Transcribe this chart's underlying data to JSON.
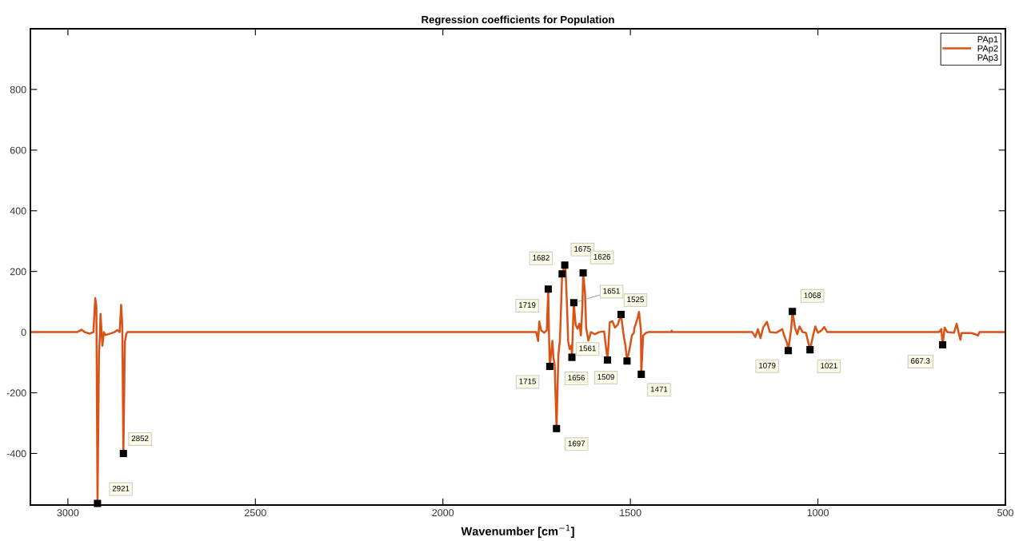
{
  "chart_data": {
    "type": "line",
    "title": "Regression coefficients for Population",
    "xlabel": "Wavenumber [cm$^{−1}$]",
    "xlim": [
      3100,
      500
    ],
    "xticks": [
      3000,
      2500,
      2000,
      1500,
      1000,
      500
    ],
    "ylim": [
      -570,
      1000
    ],
    "yticks": [
      -400,
      -200,
      0,
      200,
      400,
      600,
      800
    ],
    "grid": false,
    "legend": "top right",
    "marker": "none",
    "line_style": "solid",
    "series": [
      {
        "name": "PAp1"
      },
      {
        "name": "PAp2",
        "color": "#d95319",
        "x": [
          3095,
          2975,
          2964,
          2955,
          2942,
          2932,
          2927,
          2924,
          2921,
          2917,
          2915,
          2913,
          2908,
          2904,
          2900,
          2876,
          2868,
          2862,
          2858,
          2855,
          2852,
          2848,
          2844,
          2841,
          1815,
          1751,
          1746,
          1743,
          1738,
          1730,
          1723,
          1719,
          1717,
          1715,
          1708,
          1705,
          1702,
          1697,
          1692,
          1688,
          1686,
          1682,
          1675,
          1673,
          1669,
          1666,
          1662,
          1657,
          1656,
          1651,
          1646,
          1641,
          1636,
          1632,
          1628,
          1626,
          1621,
          1618,
          1612,
          1605,
          1595,
          1584,
          1570,
          1561,
          1555,
          1548,
          1541,
          1534,
          1525,
          1518,
          1513,
          1509,
          1502,
          1496,
          1491,
          1489,
          1482,
          1477,
          1472,
          1471,
          1466,
          1459,
          1452,
          1431,
          1392,
          1390,
          1388,
          1175,
          1167,
          1160,
          1153,
          1146,
          1136,
          1128,
          1111,
          1095,
          1090,
          1082,
          1079,
          1071,
          1068,
          1061,
          1055,
          1049,
          1041,
          1032,
          1025,
          1021,
          1012,
          1007,
          1000,
          990,
          983,
          975,
          955,
          677,
          671,
          667.3,
          662,
          655,
          637,
          630,
          625,
          620,
          617,
          591,
          580,
          573,
          569,
          500
        ],
        "values": [
          0,
          0,
          8,
          0,
          -5,
          0,
          112,
          84,
          -565,
          -66,
          -20,
          60,
          -45,
          0,
          -10,
          0,
          7,
          0,
          90,
          22,
          -400,
          -31,
          -5,
          0,
          0,
          0,
          -29,
          35,
          6,
          -2,
          6,
          142,
          -11,
          -113,
          -29,
          -88,
          -105,
          -318,
          -73,
          -29,
          41,
          192,
          221,
          207,
          85,
          -29,
          -56,
          -43,
          -83,
          97,
          24,
          11,
          28,
          -11,
          85,
          195,
          129,
          15,
          -28,
          0,
          -7,
          0,
          2,
          -92,
          32,
          36,
          15,
          24,
          58,
          -11,
          -46,
          -95,
          -54,
          -11,
          -3,
          15,
          41,
          67,
          6,
          -139,
          -11,
          -3,
          0,
          0,
          0,
          5,
          0,
          0,
          -16,
          10,
          -20,
          15,
          34,
          0,
          -2,
          10,
          -11,
          -37,
          -61,
          14,
          68,
          14,
          -7,
          19,
          0,
          -2,
          -37,
          -58,
          -7,
          19,
          -2,
          6,
          17,
          0,
          0,
          0,
          10,
          -42,
          15,
          0,
          -2,
          28,
          0,
          -25,
          -3,
          -3,
          -7,
          -11,
          0,
          0
        ]
      },
      {
        "name": "PAp3"
      }
    ],
    "annotations": [
      {
        "text": "2921",
        "x": 2921,
        "y": -565
      },
      {
        "text": "2852",
        "x": 2852,
        "y": -400
      },
      {
        "text": "1719",
        "x": 1719,
        "y": 142
      },
      {
        "text": "1715",
        "x": 1715,
        "y": -113
      },
      {
        "text": "1697",
        "x": 1697,
        "y": -318
      },
      {
        "text": "1682",
        "x": 1682,
        "y": 192
      },
      {
        "text": "1675",
        "x": 1675,
        "y": 221
      },
      {
        "text": "1656",
        "x": 1656,
        "y": -83
      },
      {
        "text": "1651",
        "x": 1651,
        "y": 97
      },
      {
        "text": "1626",
        "x": 1626,
        "y": 195
      },
      {
        "text": "1561",
        "x": 1561,
        "y": -92
      },
      {
        "text": "1525",
        "x": 1525,
        "y": 58
      },
      {
        "text": "1509",
        "x": 1509,
        "y": -95
      },
      {
        "text": "1471",
        "x": 1471,
        "y": -139
      },
      {
        "text": "1079",
        "x": 1079,
        "y": -61
      },
      {
        "text": "1068",
        "x": 1068,
        "y": 68
      },
      {
        "text": "1021",
        "x": 1021,
        "y": -58
      },
      {
        "text": "667.3",
        "x": 667.3,
        "y": -42
      }
    ]
  }
}
